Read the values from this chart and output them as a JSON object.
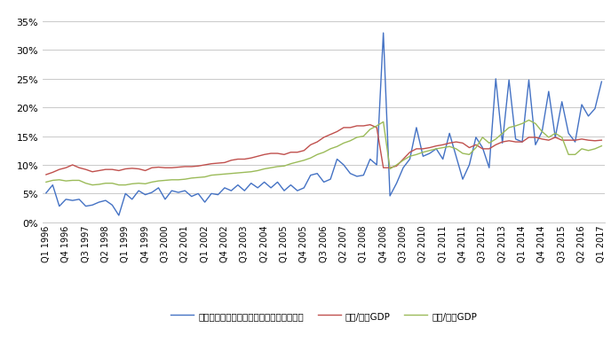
{
  "blue_label": "企業利益に占める対外直接投資収益の割合",
  "red_label": "輸出/名目GDP",
  "green_label": "輸入/名目GDP",
  "blue_color": "#4472C4",
  "red_color": "#C0504D",
  "green_color": "#9BBB59",
  "ylim_max": 0.37,
  "yticks": [
    0.0,
    0.05,
    0.1,
    0.15,
    0.2,
    0.25,
    0.3,
    0.35
  ],
  "blue_data": [
    0.051,
    0.065,
    0.028,
    0.04,
    0.038,
    0.04,
    0.028,
    0.03,
    0.035,
    0.038,
    0.03,
    0.012,
    0.05,
    0.04,
    0.055,
    0.048,
    0.052,
    0.06,
    0.04,
    0.055,
    0.052,
    0.055,
    0.045,
    0.05,
    0.035,
    0.05,
    0.048,
    0.06,
    0.055,
    0.065,
    0.055,
    0.068,
    0.06,
    0.07,
    0.06,
    0.07,
    0.055,
    0.065,
    0.055,
    0.06,
    0.082,
    0.085,
    0.07,
    0.075,
    0.11,
    0.1,
    0.085,
    0.08,
    0.082,
    0.11,
    0.1,
    0.33,
    0.046,
    0.068,
    0.095,
    0.11,
    0.165,
    0.115,
    0.12,
    0.128,
    0.11,
    0.155,
    0.115,
    0.075,
    0.1,
    0.148,
    0.13,
    0.095,
    0.25,
    0.138,
    0.248,
    0.145,
    0.14,
    0.248,
    0.135,
    0.158,
    0.228,
    0.148,
    0.21,
    0.155,
    0.14,
    0.205,
    0.185,
    0.198,
    0.245
  ],
  "red_data": [
    0.083,
    0.087,
    0.092,
    0.095,
    0.1,
    0.095,
    0.092,
    0.088,
    0.09,
    0.092,
    0.092,
    0.09,
    0.093,
    0.094,
    0.093,
    0.09,
    0.095,
    0.096,
    0.095,
    0.095,
    0.096,
    0.097,
    0.097,
    0.098,
    0.1,
    0.102,
    0.103,
    0.104,
    0.108,
    0.11,
    0.11,
    0.112,
    0.115,
    0.118,
    0.12,
    0.12,
    0.118,
    0.122,
    0.122,
    0.125,
    0.135,
    0.14,
    0.148,
    0.153,
    0.158,
    0.165,
    0.165,
    0.168,
    0.168,
    0.17,
    0.165,
    0.095,
    0.095,
    0.098,
    0.11,
    0.122,
    0.128,
    0.128,
    0.13,
    0.133,
    0.135,
    0.138,
    0.14,
    0.138,
    0.13,
    0.135,
    0.128,
    0.128,
    0.135,
    0.14,
    0.142,
    0.14,
    0.14,
    0.148,
    0.148,
    0.145,
    0.143,
    0.148,
    0.143,
    0.143,
    0.143,
    0.145,
    0.143,
    0.142,
    0.143
  ],
  "green_data": [
    0.07,
    0.073,
    0.074,
    0.072,
    0.073,
    0.073,
    0.068,
    0.065,
    0.066,
    0.068,
    0.068,
    0.065,
    0.065,
    0.067,
    0.068,
    0.067,
    0.07,
    0.072,
    0.073,
    0.074,
    0.074,
    0.075,
    0.077,
    0.078,
    0.079,
    0.082,
    0.083,
    0.084,
    0.085,
    0.086,
    0.087,
    0.088,
    0.09,
    0.093,
    0.095,
    0.097,
    0.098,
    0.102,
    0.105,
    0.108,
    0.112,
    0.118,
    0.122,
    0.128,
    0.132,
    0.138,
    0.142,
    0.148,
    0.15,
    0.162,
    0.168,
    0.175,
    0.093,
    0.1,
    0.108,
    0.115,
    0.118,
    0.122,
    0.125,
    0.128,
    0.13,
    0.132,
    0.128,
    0.12,
    0.118,
    0.13,
    0.148,
    0.138,
    0.145,
    0.155,
    0.165,
    0.168,
    0.172,
    0.178,
    0.172,
    0.158,
    0.148,
    0.155,
    0.148,
    0.118,
    0.118,
    0.128,
    0.125,
    0.128,
    0.133
  ]
}
